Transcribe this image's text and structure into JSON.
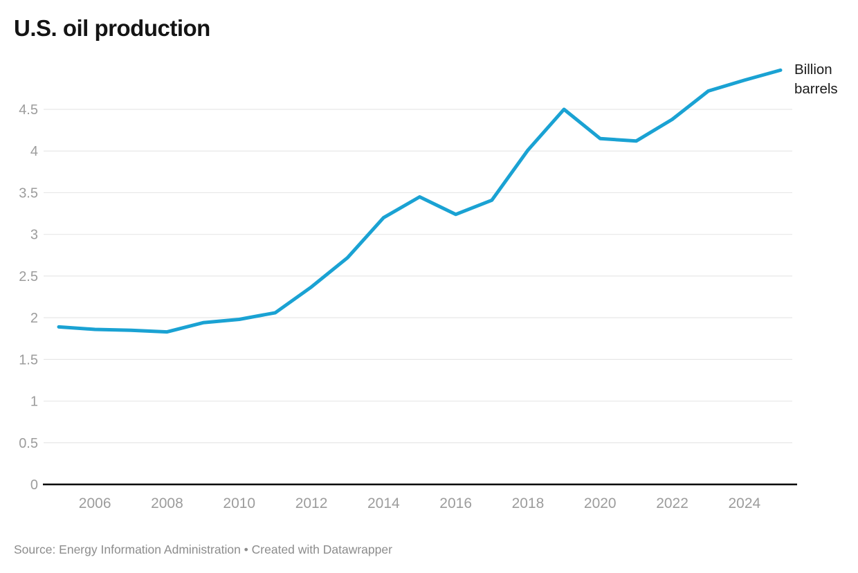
{
  "title": "U.S. oil production",
  "unit_label": "Billion barrels",
  "footer": "Source: Energy Information Administration • Created with Datawrapper",
  "colors": {
    "line": "#1aa2d3",
    "grid": "#e7e7e7",
    "baseline": "#000000",
    "tick_text": "#9c9c9c",
    "title_text": "#141414",
    "annotation_text": "#1a1a1a",
    "footer_text": "#8c8c8c"
  },
  "chart_data": {
    "type": "line",
    "title": "U.S. oil production",
    "ylabel": "Billion barrels",
    "x": [
      2005,
      2006,
      2007,
      2008,
      2009,
      2010,
      2011,
      2012,
      2013,
      2014,
      2015,
      2016,
      2017,
      2018,
      2019,
      2020,
      2021,
      2022,
      2023,
      2024,
      2025
    ],
    "series": [
      {
        "name": "U.S. oil production (billion barrels)",
        "values": [
          1.89,
          1.86,
          1.85,
          1.83,
          1.94,
          1.98,
          2.06,
          2.37,
          2.72,
          3.2,
          3.45,
          3.24,
          3.41,
          4.01,
          4.5,
          4.15,
          4.12,
          4.38,
          4.72,
          4.85,
          4.97
        ]
      }
    ],
    "xlim": [
      2005,
      2025
    ],
    "ylim": [
      0,
      5.0
    ],
    "yticks": [
      0,
      0.5,
      1,
      1.5,
      2,
      2.5,
      3,
      3.5,
      4,
      4.5
    ],
    "xticks": [
      2006,
      2008,
      2010,
      2012,
      2014,
      2016,
      2018,
      2020,
      2022,
      2024
    ],
    "grid": true,
    "legend": "none"
  }
}
